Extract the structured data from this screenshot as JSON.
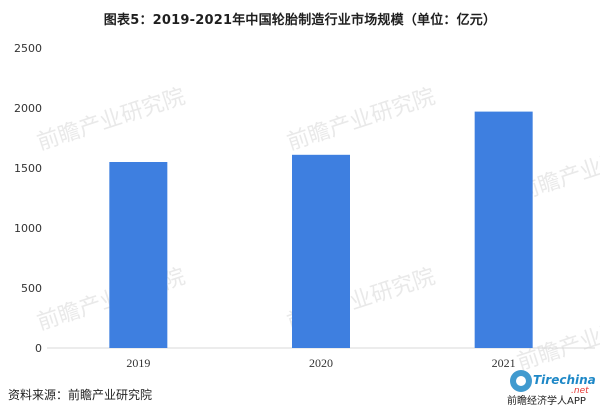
{
  "chart_data": {
    "type": "bar",
    "title": "图表5：2019-2021年中国轮胎制造行业市场规模（单位：亿元）",
    "categories": [
      "2019",
      "2020",
      "2021"
    ],
    "values": [
      1550,
      1610,
      1970
    ],
    "ylim": [
      0,
      2500
    ],
    "yticks": [
      0,
      500,
      1000,
      1500,
      2000,
      2500
    ],
    "xlabel": "",
    "ylabel": "",
    "grid": false,
    "bar_color": "#3e7fe0"
  },
  "footer": {
    "source": "资料来源：前瞻产业研究院"
  },
  "watermark": {
    "text": "前瞻产业研究院"
  },
  "badge": {
    "site": "Tirechina",
    "tld": ".net",
    "caption": "前瞻经济学人APP"
  }
}
